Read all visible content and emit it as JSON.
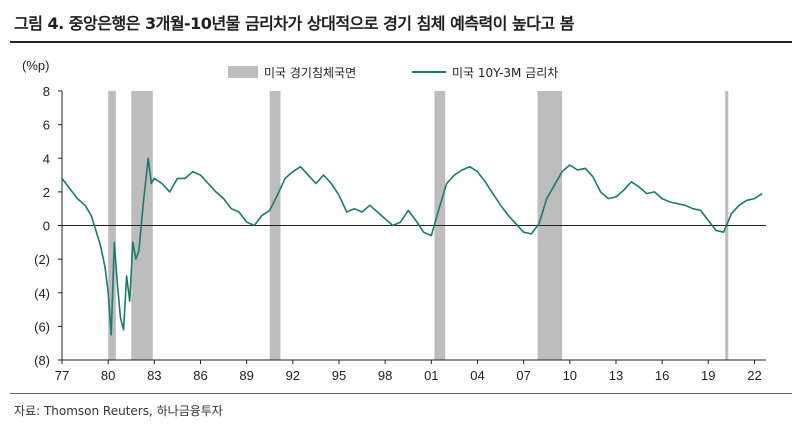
{
  "title": "그림 4. 중앙은행은 3개월-10년물 금리차가 상대적으로 경기 침체 예측력이 높다고 봄",
  "source": "자료: Thomson Reuters, 하나금융투자",
  "colors": {
    "line": "#1d7a6a",
    "recession": "#bdbdbd",
    "axis": "#222222"
  },
  "chart_data": {
    "type": "line",
    "unit_label": "(%p)",
    "ylim": [
      -8,
      8
    ],
    "yticks": [
      8,
      6,
      4,
      2,
      0,
      -2,
      -4,
      -6,
      -8
    ],
    "ytick_labels": [
      "8",
      "6",
      "4",
      "2",
      "0",
      "(2)",
      "(4)",
      "(6)",
      "(8)"
    ],
    "xlim": [
      1977.0,
      2022.75
    ],
    "xticks": [
      1977,
      1980,
      1983,
      1986,
      1989,
      1992,
      1995,
      1998,
      2001,
      2004,
      2007,
      2010,
      2013,
      2016,
      2019,
      2022
    ],
    "xtick_labels": [
      "77",
      "80",
      "83",
      "86",
      "89",
      "92",
      "95",
      "98",
      "01",
      "04",
      "07",
      "10",
      "13",
      "16",
      "19",
      "22"
    ],
    "legend": {
      "recession_label": "미국 경기침체국면",
      "line_label": "미국 10Y-3M 금리차",
      "placement": "top-center"
    },
    "recessions": [
      {
        "start": 1980.0,
        "end": 1980.5
      },
      {
        "start": 1981.5,
        "end": 1982.9
      },
      {
        "start": 1990.5,
        "end": 1991.2
      },
      {
        "start": 2001.2,
        "end": 2001.9
      },
      {
        "start": 2007.9,
        "end": 2009.5
      },
      {
        "start": 2020.1,
        "end": 2020.3
      }
    ],
    "series": [
      {
        "name": "미국 10Y-3M 금리차",
        "x": [
          1977.0,
          1977.5,
          1978.0,
          1978.5,
          1978.9,
          1979.2,
          1979.5,
          1979.8,
          1980.0,
          1980.2,
          1980.4,
          1980.6,
          1980.8,
          1981.0,
          1981.2,
          1981.4,
          1981.6,
          1981.8,
          1982.0,
          1982.3,
          1982.6,
          1982.8,
          1983.0,
          1983.5,
          1984.0,
          1984.5,
          1985.0,
          1985.5,
          1986.0,
          1986.5,
          1987.0,
          1987.5,
          1988.0,
          1988.5,
          1989.0,
          1989.5,
          1990.0,
          1990.5,
          1991.0,
          1991.5,
          1992.0,
          1992.5,
          1993.0,
          1993.5,
          1994.0,
          1994.5,
          1995.0,
          1995.5,
          1996.0,
          1996.5,
          1997.0,
          1997.5,
          1998.0,
          1998.5,
          1999.0,
          1999.5,
          2000.0,
          2000.5,
          2001.0,
          2001.5,
          2002.0,
          2002.5,
          2003.0,
          2003.5,
          2004.0,
          2004.5,
          2005.0,
          2005.5,
          2006.0,
          2006.5,
          2007.0,
          2007.5,
          2008.0,
          2008.5,
          2009.0,
          2009.5,
          2010.0,
          2010.5,
          2011.0,
          2011.5,
          2012.0,
          2012.5,
          2013.0,
          2013.5,
          2014.0,
          2014.5,
          2015.0,
          2015.5,
          2016.0,
          2016.5,
          2017.0,
          2017.5,
          2018.0,
          2018.5,
          2019.0,
          2019.5,
          2020.0,
          2020.5,
          2021.0,
          2021.5,
          2022.0,
          2022.5
        ],
        "values": [
          2.8,
          2.2,
          1.6,
          1.2,
          0.6,
          -0.3,
          -1.2,
          -2.5,
          -4.0,
          -6.5,
          -1.0,
          -3.5,
          -5.5,
          -6.2,
          -3.0,
          -4.5,
          -1.0,
          -2.0,
          -1.5,
          1.5,
          4.0,
          2.5,
          2.8,
          2.5,
          2.0,
          2.8,
          2.8,
          3.2,
          3.0,
          2.5,
          2.0,
          1.6,
          1.0,
          0.8,
          0.2,
          0.0,
          0.6,
          0.9,
          1.8,
          2.8,
          3.2,
          3.5,
          3.0,
          2.5,
          3.0,
          2.5,
          1.8,
          0.8,
          1.0,
          0.8,
          1.2,
          0.8,
          0.4,
          0.0,
          0.2,
          0.9,
          0.3,
          -0.4,
          -0.6,
          1.0,
          2.5,
          3.0,
          3.3,
          3.5,
          3.2,
          2.6,
          1.9,
          1.2,
          0.6,
          0.1,
          -0.4,
          -0.5,
          0.1,
          1.6,
          2.4,
          3.2,
          3.6,
          3.3,
          3.4,
          2.9,
          2.0,
          1.6,
          1.7,
          2.1,
          2.6,
          2.3,
          1.9,
          2.0,
          1.6,
          1.4,
          1.3,
          1.2,
          1.0,
          0.9,
          0.3,
          -0.3,
          -0.4,
          0.7,
          1.2,
          1.5,
          1.6,
          1.9
        ]
      }
    ]
  }
}
